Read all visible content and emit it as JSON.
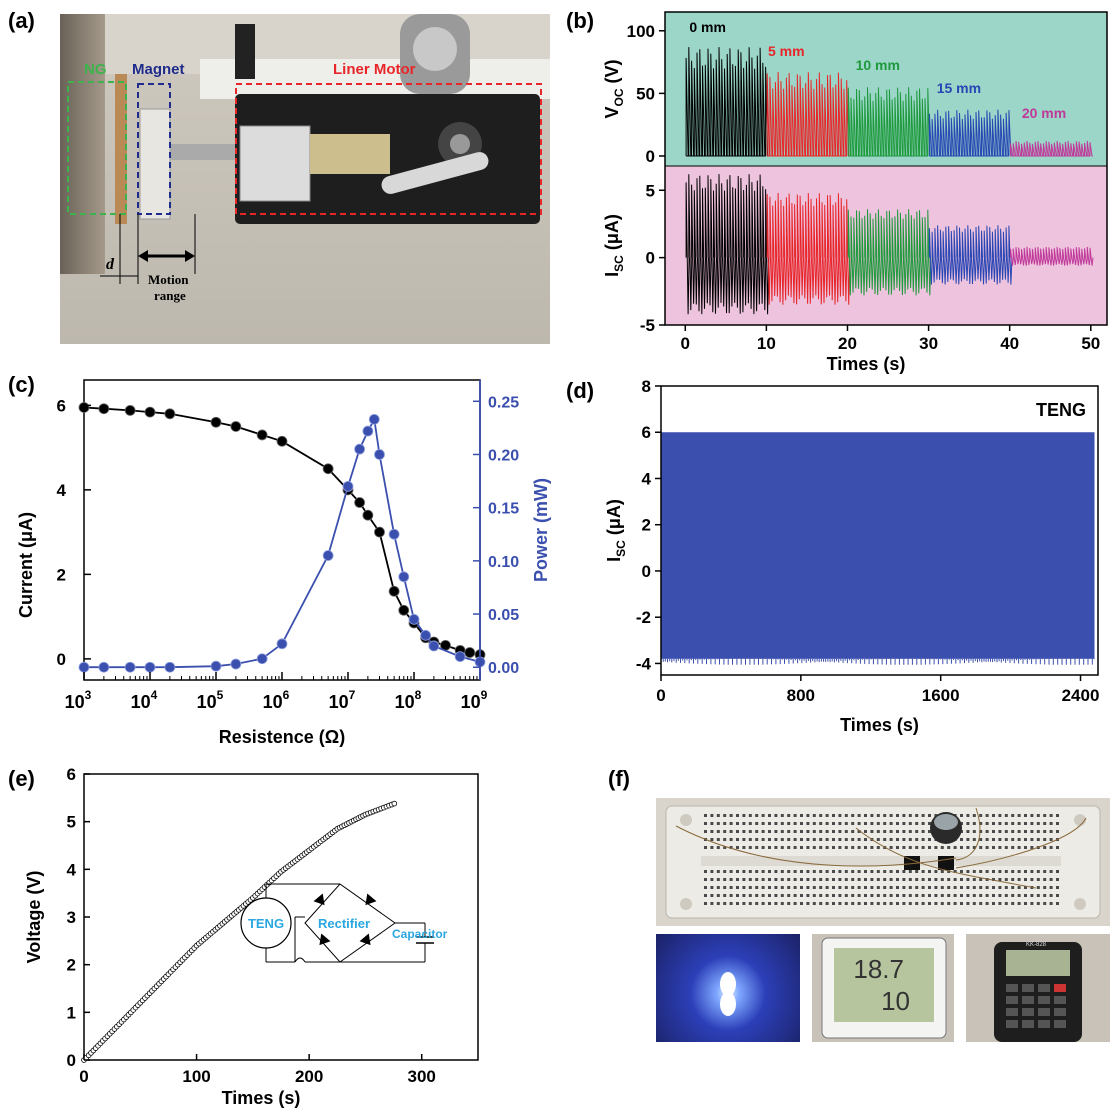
{
  "panels": {
    "a": {
      "label": "(a)",
      "tags": {
        "ng": "NG",
        "magnet": "Magnet",
        "motor": "Liner Motor",
        "d": "d",
        "motion1": "Motion",
        "motion2": "range"
      }
    },
    "b": {
      "label": "(b)"
    },
    "c": {
      "label": "(c)"
    },
    "d": {
      "label": "(d)"
    },
    "e": {
      "label": "(e)"
    },
    "f": {
      "label": "(f)",
      "watch_brand": "KK-828"
    }
  },
  "chart_data": [
    {
      "id": "b-voc",
      "type": "line",
      "ylabel": "V",
      "ylabel_sub": "OC",
      "ylabel_unit": "(V)",
      "ylim": [
        -8,
        115
      ],
      "yticks": [
        0,
        50,
        100
      ],
      "background": "#9bd6c8",
      "series": [
        {
          "name": "0 mm",
          "color": "#000000",
          "t_range": [
            0,
            10
          ],
          "peak": 87,
          "min": 0
        },
        {
          "name": "5 mm",
          "color": "#e8262a",
          "t_range": [
            10,
            20
          ],
          "peak": 67,
          "min": 0
        },
        {
          "name": "10 mm",
          "color": "#1e9a3c",
          "t_range": [
            20,
            30
          ],
          "peak": 55,
          "min": 0
        },
        {
          "name": "15 mm",
          "color": "#2846b4",
          "t_range": [
            30,
            40
          ],
          "peak": 37,
          "min": 0
        },
        {
          "name": "20 mm",
          "color": "#c0399a",
          "t_range": [
            40,
            50
          ],
          "peak": 12,
          "min": 0
        }
      ]
    },
    {
      "id": "b-isc",
      "type": "line",
      "xlabel": "Times (s)",
      "ylabel": "I",
      "ylabel_sub": "SC",
      "ylabel_unit": "(μA)",
      "xlim": [
        -2.5,
        52
      ],
      "ylim": [
        -5,
        6.8
      ],
      "xticks": [
        0,
        10,
        20,
        30,
        40,
        50
      ],
      "yticks": [
        -5,
        0,
        5
      ],
      "background": "#edc3dd",
      "series": [
        {
          "name": "0 mm",
          "color": "#000000",
          "t_range": [
            0,
            10
          ],
          "peak": 6.2,
          "min": -4.2
        },
        {
          "name": "5 mm",
          "color": "#e8262a",
          "t_range": [
            10,
            20
          ],
          "peak": 4.8,
          "min": -3.5
        },
        {
          "name": "10 mm",
          "color": "#1e9a3c",
          "t_range": [
            20,
            30
          ],
          "peak": 3.6,
          "min": -2.8
        },
        {
          "name": "15 mm",
          "color": "#2846b4",
          "t_range": [
            30,
            40
          ],
          "peak": 2.4,
          "min": -2.0
        },
        {
          "name": "20 mm",
          "color": "#c0399a",
          "t_range": [
            40,
            50
          ],
          "peak": 0.8,
          "min": -0.6
        }
      ]
    },
    {
      "id": "c",
      "type": "line",
      "xlabel": "Resistence (Ω)",
      "x_scale": "log",
      "xlim": [
        1000,
        1000000000
      ],
      "xticks": [
        1000,
        10000,
        100000,
        1000000,
        10000000,
        100000000,
        1000000000
      ],
      "xtick_labels": [
        {
          "b": "10",
          "e": "3"
        },
        {
          "b": "10",
          "e": "4"
        },
        {
          "b": "10",
          "e": "5"
        },
        {
          "b": "10",
          "e": "6"
        },
        {
          "b": "10",
          "e": "7"
        },
        {
          "b": "10",
          "e": "8"
        },
        {
          "b": "10",
          "e": "9"
        }
      ],
      "ylabel_left": "Current (μA)",
      "ylim_left": [
        -0.5,
        6.6
      ],
      "yticks_left": [
        0,
        2,
        4,
        6
      ],
      "ylabel_right": "Power (mW)",
      "ylim_right": [
        -0.012,
        0.27
      ],
      "yticks_right": [
        "0.00",
        "0.05",
        "0.10",
        "0.15",
        "0.20",
        "0.25"
      ],
      "series": [
        {
          "name": "Current",
          "axis": "left",
          "color": "#000000",
          "x": [
            1000,
            2000,
            5000,
            10000,
            20000,
            100000,
            200000,
            500000,
            1000000,
            5000000,
            10000000,
            15000000,
            20000000,
            30000000,
            50000000,
            70000000,
            100000000,
            150000000,
            200000000,
            300000000,
            500000000,
            700000000,
            1000000000
          ],
          "y": [
            5.95,
            5.92,
            5.88,
            5.84,
            5.8,
            5.6,
            5.5,
            5.3,
            5.15,
            4.5,
            4.0,
            3.7,
            3.4,
            3.0,
            1.6,
            1.15,
            0.85,
            0.5,
            0.4,
            0.32,
            0.2,
            0.15,
            0.1
          ]
        },
        {
          "name": "Power",
          "axis": "right",
          "color": "#3b4fae",
          "x": [
            1000,
            2000,
            5000,
            10000,
            20000,
            100000,
            200000,
            500000,
            1000000,
            5000000,
            10000000,
            15000000,
            20000000,
            25000000,
            30000000,
            50000000,
            70000000,
            100000000,
            150000000,
            200000000,
            500000000,
            1000000000
          ],
          "y": [
            0.0,
            0.0,
            0.0,
            0.0,
            0.0,
            0.001,
            0.003,
            0.008,
            0.022,
            0.105,
            0.17,
            0.205,
            0.222,
            0.233,
            0.2,
            0.125,
            0.085,
            0.045,
            0.03,
            0.02,
            0.01,
            0.005
          ]
        }
      ]
    },
    {
      "id": "d",
      "type": "area",
      "title": "TENG",
      "xlabel": "Times (s)",
      "ylabel": "I",
      "ylabel_sub": "SC",
      "ylabel_unit": "(μA)",
      "xlim": [
        0,
        2500
      ],
      "ylim": [
        -4.5,
        8
      ],
      "xticks": [
        0,
        800,
        1600,
        2400
      ],
      "yticks": [
        -4,
        -2,
        0,
        2,
        4,
        6,
        8
      ],
      "color": "#3b4fae",
      "band": {
        "x": [
          0,
          2480
        ],
        "max": 6.0,
        "min": -3.8
      }
    },
    {
      "id": "e",
      "type": "scatter",
      "xlabel": "Times (s)",
      "ylabel": "Voltage (V)",
      "xlim": [
        0,
        350
      ],
      "ylim": [
        0,
        6
      ],
      "xticks": [
        0,
        100,
        200,
        300
      ],
      "yticks": [
        0,
        1,
        2,
        3,
        4,
        5,
        6
      ],
      "series": [
        {
          "name": "Voltage",
          "color": "#000000",
          "x": [
            0,
            25,
            50,
            75,
            100,
            125,
            150,
            175,
            200,
            225,
            250,
            278
          ],
          "y": [
            0,
            0.6,
            1.2,
            1.8,
            2.4,
            2.9,
            3.4,
            3.95,
            4.4,
            4.85,
            5.15,
            5.4
          ]
        }
      ],
      "inset": {
        "teng": "TENG",
        "rectifier": "Rectifier",
        "capacitor": "Capacitor"
      }
    }
  ]
}
